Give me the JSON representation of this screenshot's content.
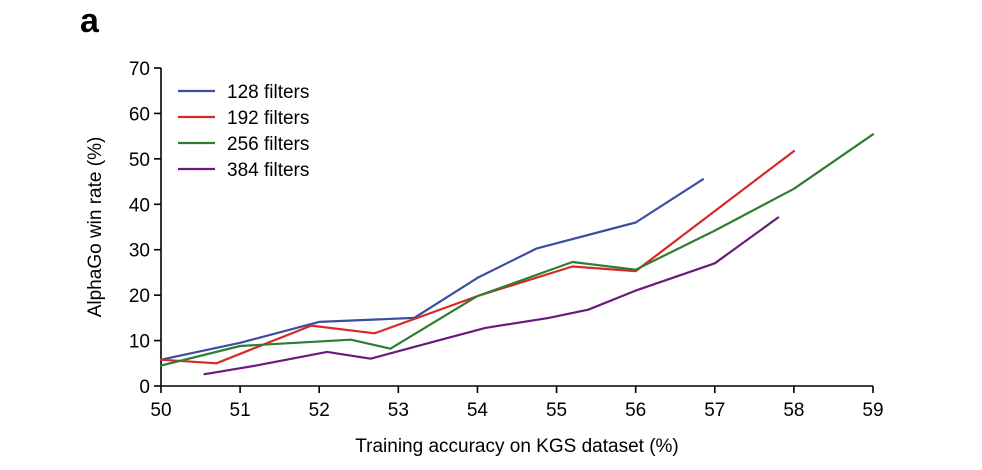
{
  "panel_label": "a",
  "chart_data": {
    "type": "line",
    "xlabel": "Training accuracy on KGS dataset (%)",
    "ylabel": "AlphaGo win rate (%)",
    "xlim": [
      50,
      59
    ],
    "ylim": [
      0,
      70
    ],
    "xticks": [
      50,
      51,
      52,
      53,
      54,
      55,
      56,
      57,
      58,
      59
    ],
    "yticks": [
      0,
      10,
      20,
      30,
      40,
      50,
      60,
      70
    ],
    "grid": false,
    "legend_position": "top-left",
    "series": [
      {
        "name": "128 filters",
        "color": "#3a4fa0",
        "x": [
          50.0,
          51.0,
          52.0,
          53.2,
          54.0,
          54.75,
          56.0,
          56.85
        ],
        "y": [
          5.8,
          9.5,
          14.1,
          15.0,
          23.8,
          30.3,
          36.0,
          45.5
        ]
      },
      {
        "name": "192 filters",
        "color": "#d42a2a",
        "x": [
          50.0,
          50.7,
          51.9,
          52.7,
          54.0,
          55.2,
          56.0,
          58.0
        ],
        "y": [
          5.8,
          5.0,
          13.3,
          11.6,
          19.8,
          26.3,
          25.3,
          51.7
        ]
      },
      {
        "name": "256 filters",
        "color": "#2e7d32",
        "x": [
          50.0,
          51.0,
          52.4,
          52.9,
          54.0,
          55.2,
          56.0,
          57.0,
          58.0,
          59.0
        ],
        "y": [
          4.5,
          8.8,
          10.2,
          8.2,
          19.8,
          27.3,
          25.6,
          34.2,
          43.4,
          55.4
        ]
      },
      {
        "name": "384 filters",
        "color": "#6a1b7a",
        "x": [
          50.55,
          51.2,
          52.1,
          52.65,
          53.5,
          54.1,
          54.9,
          55.4,
          56.0,
          57.0,
          57.8
        ],
        "y": [
          2.6,
          4.5,
          7.5,
          6.0,
          10.0,
          12.8,
          15.0,
          16.8,
          21.0,
          27.0,
          37.1
        ]
      }
    ]
  }
}
